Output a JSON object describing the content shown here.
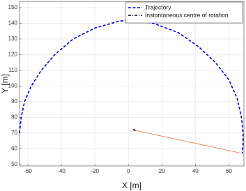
{
  "chart_data": {
    "type": "line",
    "xlabel": "X [m]",
    "ylabel": "Y [m]",
    "xlim": [
      -65,
      69
    ],
    "ylim": [
      49,
      154
    ],
    "xticks": [
      -60,
      -40,
      -20,
      0,
      20,
      40,
      60
    ],
    "yticks": [
      50,
      60,
      70,
      80,
      90,
      100,
      110,
      120,
      130,
      140,
      150
    ],
    "grid": true,
    "legend": "northeast",
    "series": [
      {
        "name": "Trajectory",
        "color": "#0000cc",
        "style": "dashed",
        "x": [
          -65,
          -64,
          -62,
          -58,
          -52,
          -44,
          -33,
          -20,
          -5,
          2,
          15,
          30,
          42,
          52,
          60,
          65,
          67.5,
          68.5,
          68.5,
          68
        ],
        "values": [
          70,
          80,
          90,
          100,
          110,
          120,
          130,
          137,
          141.5,
          142,
          140,
          134,
          125,
          115,
          104,
          92,
          80,
          70,
          62,
          57
        ]
      },
      {
        "name": "Instantaneous centre of rotation",
        "color": "#000000",
        "style": "dashdot",
        "x": [
          3,
          3.5,
          4.5
        ],
        "values": [
          72.5,
          71.8,
          71.6
        ]
      },
      {
        "color": "#e8875a",
        "style": "solid",
        "x": [
          4.5,
          68
        ],
        "values": [
          71.6,
          57
        ]
      }
    ]
  }
}
